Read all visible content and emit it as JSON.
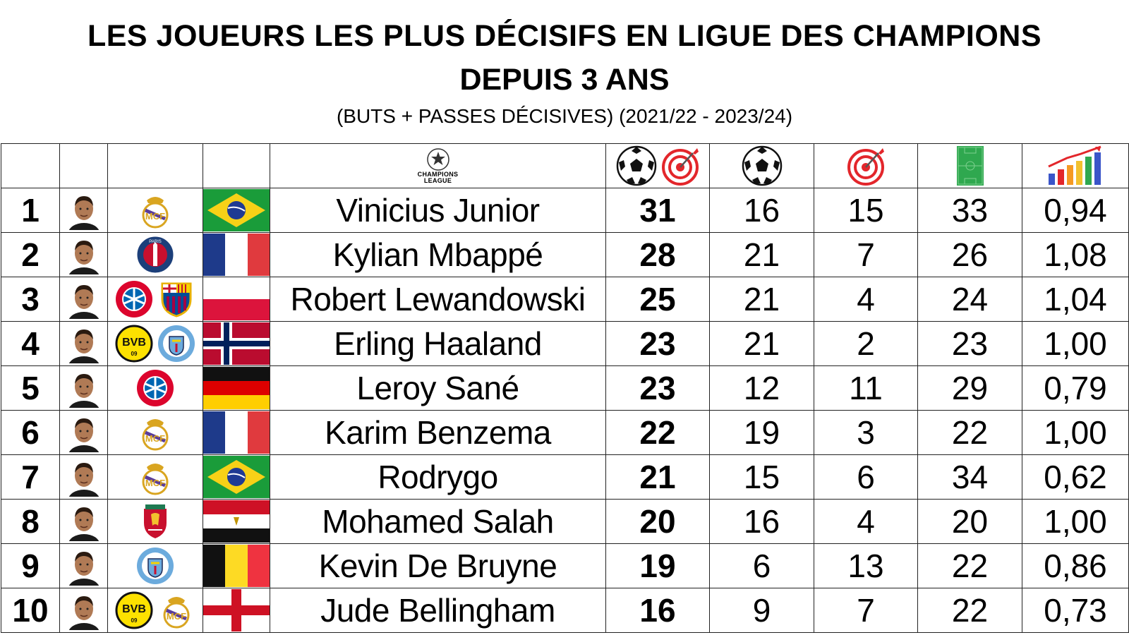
{
  "header": {
    "title_line1": "LES JOUEURS LES PLUS DÉCISIFS EN LIGUE DES CHAMPIONS",
    "title_line2": "DEPUIS 3 ANS",
    "subtitle": "(BUTS + PASSES DÉCISIVES) (2021/22 - 2023/24)"
  },
  "columns": {
    "competition_logo_text": "CHAMPIONS LEAGUE",
    "icons": [
      "ball-and-target-icon",
      "ball-icon",
      "target-icon",
      "pitch-icon",
      "bar-chart-icon"
    ]
  },
  "players": [
    {
      "rank": "1",
      "name": "Vinicius Junior",
      "clubs": [
        "real-madrid"
      ],
      "flag": "brazil",
      "total": "31",
      "goals": "16",
      "assists": "15",
      "matches": "33",
      "ratio": "0,94"
    },
    {
      "rank": "2",
      "name": "Kylian Mbappé",
      "clubs": [
        "psg"
      ],
      "flag": "france",
      "total": "28",
      "goals": "21",
      "assists": "7",
      "matches": "26",
      "ratio": "1,08"
    },
    {
      "rank": "3",
      "name": "Robert Lewandowski",
      "clubs": [
        "bayern-munchen",
        "fc-barcelona"
      ],
      "flag": "poland",
      "total": "25",
      "goals": "21",
      "assists": "4",
      "matches": "24",
      "ratio": "1,04"
    },
    {
      "rank": "4",
      "name": "Erling Haaland",
      "clubs": [
        "borussia-dortmund",
        "manchester-city"
      ],
      "flag": "norway",
      "total": "23",
      "goals": "21",
      "assists": "2",
      "matches": "23",
      "ratio": "1,00"
    },
    {
      "rank": "5",
      "name": "Leroy Sané",
      "clubs": [
        "bayern-munchen"
      ],
      "flag": "germany",
      "total": "23",
      "goals": "12",
      "assists": "11",
      "matches": "29",
      "ratio": "0,79"
    },
    {
      "rank": "6",
      "name": "Karim Benzema",
      "clubs": [
        "real-madrid"
      ],
      "flag": "france",
      "total": "22",
      "goals": "19",
      "assists": "3",
      "matches": "22",
      "ratio": "1,00"
    },
    {
      "rank": "7",
      "name": "Rodrygo",
      "clubs": [
        "real-madrid"
      ],
      "flag": "brazil",
      "total": "21",
      "goals": "15",
      "assists": "6",
      "matches": "34",
      "ratio": "0,62"
    },
    {
      "rank": "8",
      "name": "Mohamed Salah",
      "clubs": [
        "liverpool"
      ],
      "flag": "egypt",
      "total": "20",
      "goals": "16",
      "assists": "4",
      "matches": "20",
      "ratio": "1,00"
    },
    {
      "rank": "9",
      "name": "Kevin De Bruyne",
      "clubs": [
        "manchester-city"
      ],
      "flag": "belgium",
      "total": "19",
      "goals": "6",
      "assists": "13",
      "matches": "22",
      "ratio": "0,86"
    },
    {
      "rank": "10",
      "name": "Jude Bellingham",
      "clubs": [
        "borussia-dortmund",
        "real-madrid"
      ],
      "flag": "england",
      "total": "16",
      "goals": "9",
      "assists": "7",
      "matches": "22",
      "ratio": "0,73"
    }
  ],
  "colors": {
    "target_red": "#e3262b",
    "pitch_green": "#2fa84f",
    "real_gold": "#d9a520",
    "psg_blue": "#1c3f7a",
    "bayern_red": "#dc052d",
    "barca_red": "#a50044",
    "barca_blue": "#004d98",
    "bvb_yellow": "#fde100",
    "city_blue": "#6cabdd",
    "liverpool_red": "#c8102e"
  }
}
